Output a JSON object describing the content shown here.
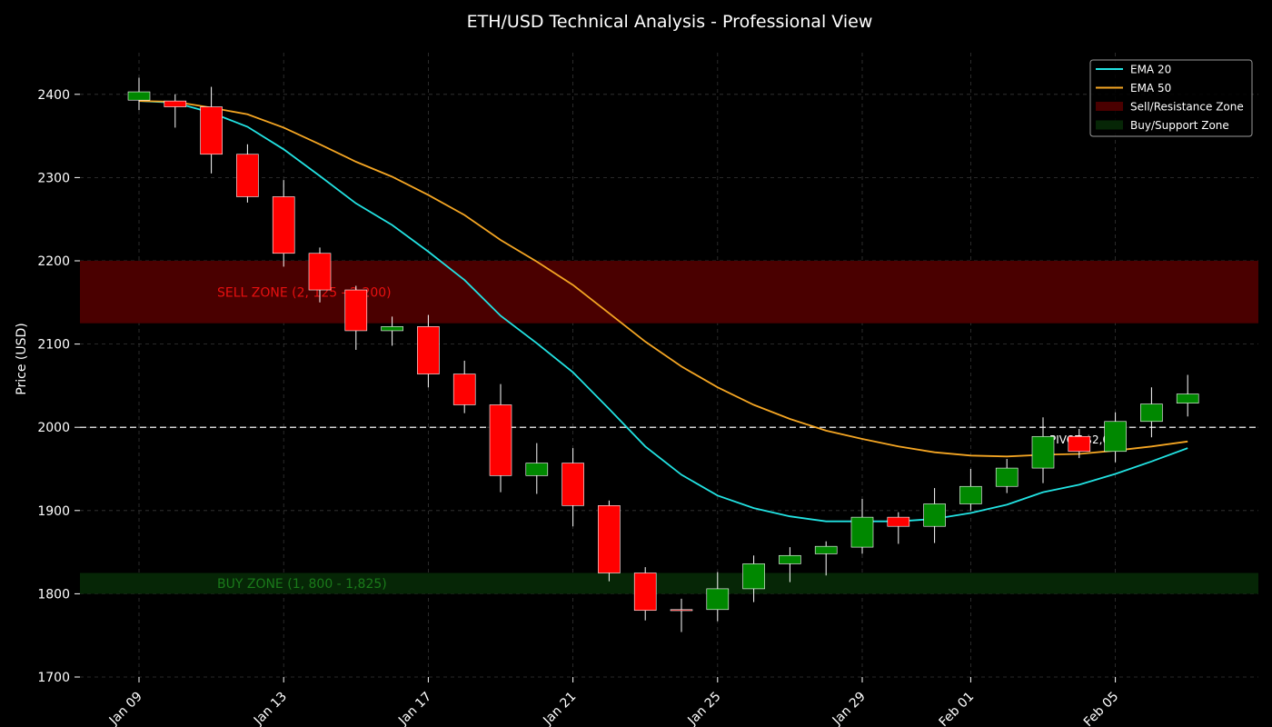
{
  "chart_data": {
    "type": "candlestick",
    "title": "ETH/USD Technical Analysis - Professional View",
    "xlabel": "",
    "ylabel": "Price (USD)",
    "ylim": [
      1700,
      2450
    ],
    "yticks": [
      1700,
      1800,
      1900,
      2000,
      2100,
      2200,
      2300,
      2400
    ],
    "xtick_labels": [
      "Jan 09",
      "Jan 13",
      "Jan 17",
      "Jan 21",
      "Jan 25",
      "Jan 29",
      "Feb 01",
      "Feb 05"
    ],
    "xtick_day_index": [
      0,
      4,
      8,
      12,
      16,
      20,
      23,
      27
    ],
    "grid": true,
    "legend_position": "top-right",
    "candles": [
      {
        "date": "Jan 09",
        "open": 2393,
        "high": 2420,
        "low": 2381,
        "close": 2403
      },
      {
        "date": "Jan 10",
        "open": 2392,
        "high": 2400,
        "low": 2360,
        "close": 2385
      },
      {
        "date": "Jan 11",
        "open": 2385,
        "high": 2409,
        "low": 2305,
        "close": 2328
      },
      {
        "date": "Jan 12",
        "open": 2328,
        "high": 2340,
        "low": 2270,
        "close": 2277
      },
      {
        "date": "Jan 13",
        "open": 2277,
        "high": 2297,
        "low": 2193,
        "close": 2209
      },
      {
        "date": "Jan 14",
        "open": 2209,
        "high": 2216,
        "low": 2150,
        "close": 2165
      },
      {
        "date": "Jan 15",
        "open": 2165,
        "high": 2170,
        "low": 2093,
        "close": 2116
      },
      {
        "date": "Jan 16",
        "open": 2116,
        "high": 2133,
        "low": 2098,
        "close": 2121
      },
      {
        "date": "Jan 17",
        "open": 2121,
        "high": 2135,
        "low": 2048,
        "close": 2064
      },
      {
        "date": "Jan 18",
        "open": 2064,
        "high": 2080,
        "low": 2017,
        "close": 2027
      },
      {
        "date": "Jan 19",
        "open": 2027,
        "high": 2052,
        "low": 1922,
        "close": 1942
      },
      {
        "date": "Jan 20",
        "open": 1942,
        "high": 1981,
        "low": 1920,
        "close": 1957
      },
      {
        "date": "Jan 21",
        "open": 1957,
        "high": 1975,
        "low": 1881,
        "close": 1906
      },
      {
        "date": "Jan 22",
        "open": 1906,
        "high": 1912,
        "low": 1815,
        "close": 1825
      },
      {
        "date": "Jan 23",
        "open": 1825,
        "high": 1832,
        "low": 1768,
        "close": 1780
      },
      {
        "date": "Jan 24",
        "open": 1781,
        "high": 1794,
        "low": 1754,
        "close": 1780
      },
      {
        "date": "Jan 25",
        "open": 1781,
        "high": 1826,
        "low": 1767,
        "close": 1806
      },
      {
        "date": "Jan 26",
        "open": 1806,
        "high": 1846,
        "low": 1790,
        "close": 1836
      },
      {
        "date": "Jan 27",
        "open": 1836,
        "high": 1856,
        "low": 1814,
        "close": 1846
      },
      {
        "date": "Jan 28",
        "open": 1848,
        "high": 1863,
        "low": 1822,
        "close": 1857
      },
      {
        "date": "Jan 29",
        "open": 1856,
        "high": 1914,
        "low": 1848,
        "close": 1892
      },
      {
        "date": "Jan 30",
        "open": 1892,
        "high": 1898,
        "low": 1860,
        "close": 1881
      },
      {
        "date": "Jan 31",
        "open": 1881,
        "high": 1927,
        "low": 1861,
        "close": 1908
      },
      {
        "date": "Feb 01",
        "open": 1908,
        "high": 1950,
        "low": 1900,
        "close": 1929
      },
      {
        "date": "Feb 02",
        "open": 1929,
        "high": 1962,
        "low": 1921,
        "close": 1951
      },
      {
        "date": "Feb 03",
        "open": 1951,
        "high": 2012,
        "low": 1933,
        "close": 1989
      },
      {
        "date": "Feb 04",
        "open": 1989,
        "high": 1998,
        "low": 1963,
        "close": 1971
      },
      {
        "date": "Feb 05",
        "open": 1971,
        "high": 2018,
        "low": 1958,
        "close": 2007
      },
      {
        "date": "Feb 06",
        "open": 2007,
        "high": 2048,
        "low": 1988,
        "close": 2028
      },
      {
        "date": "Feb 07",
        "open": 2029,
        "high": 2063,
        "low": 2013,
        "close": 2040
      }
    ],
    "series": [
      {
        "name": "EMA 20",
        "color": "#22e3e3",
        "values": [
          2392,
          2390,
          2378,
          2361,
          2334,
          2302,
          2269,
          2243,
          2211,
          2177,
          2134,
          2101,
          2066,
          2022,
          1977,
          1943,
          1918,
          1903,
          1893,
          1887,
          1887,
          1887,
          1890,
          1897,
          1907,
          1922,
          1931,
          1944,
          1959,
          1975
        ]
      },
      {
        "name": "EMA 50",
        "color": "#f5a623",
        "values": [
          2392,
          2391,
          2384,
          2376,
          2360,
          2340,
          2319,
          2301,
          2279,
          2255,
          2225,
          2199,
          2171,
          2137,
          2103,
          2073,
          2048,
          2027,
          2010,
          1996,
          1986,
          1977,
          1970,
          1966,
          1965,
          1967,
          1968,
          1972,
          1977,
          1983
        ]
      }
    ],
    "zones": [
      {
        "name": "Sell/Resistance Zone",
        "low": 2125,
        "high": 2200,
        "color": "#4a0000",
        "label": "SELL ZONE (2, 125 - 2,200)",
        "label_color": "#e81010"
      },
      {
        "name": "Buy/Support Zone",
        "low": 1800,
        "high": 1825,
        "color": "#062606",
        "label": "BUY ZONE (1, 800 - 1,825)",
        "label_color": "#1a7a1a"
      }
    ],
    "pivot": {
      "value": 2000,
      "label": "PIVOT $2,000"
    },
    "colors": {
      "up": "#008800",
      "down": "#ff0000",
      "wick": "#ffffff",
      "background": "#000000"
    }
  }
}
